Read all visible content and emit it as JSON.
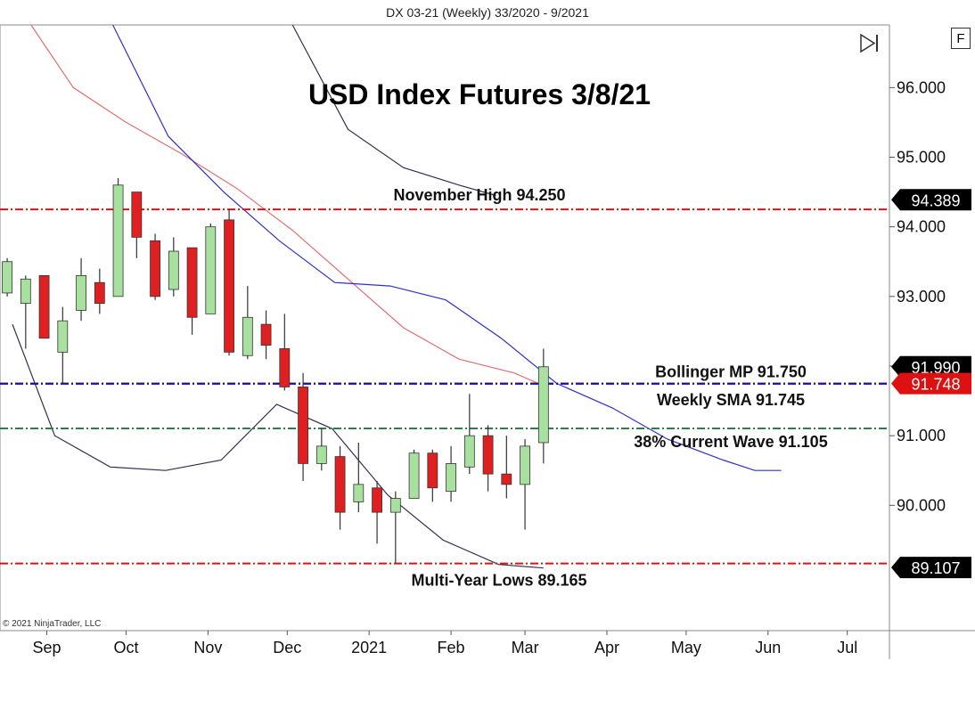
{
  "header": {
    "title": "DX 03-21 (Weekly)  33/2020 - 9/2021"
  },
  "buttons": {
    "f_label": "F"
  },
  "footer": {
    "copyright": "© 2021 NinjaTrader, LLC"
  },
  "chart_data": {
    "type": "candlestick",
    "title": "USD Index Futures 3/8/21",
    "ylim": [
      88.2,
      96.9
    ],
    "yticks": [
      90,
      91,
      92,
      93,
      94,
      95,
      96
    ],
    "ytick_labels": [
      "90.000",
      "91.000",
      "92.000",
      "93.000",
      "94.000",
      "95.000",
      "96.000"
    ],
    "xaxis_labels": [
      "Sep",
      "Oct",
      "Nov",
      "Dec",
      "2021",
      "Feb",
      "Mar",
      "Apr",
      "May",
      "Jun",
      "Jul"
    ],
    "grid": false,
    "colors": {
      "up": "#a8e0a0",
      "down": "#e02020",
      "wick": "#333333",
      "sma": "#3030d0",
      "bollinger_mid": "#e07070",
      "bollinger_band": "#303050"
    },
    "candles": [
      {
        "week": "2020-08-17",
        "o": 93.05,
        "h": 93.55,
        "l": 93.0,
        "c": 93.5
      },
      {
        "week": "2020-08-24",
        "o": 92.9,
        "h": 93.3,
        "l": 92.25,
        "c": 93.25
      },
      {
        "week": "2020-08-31",
        "o": 93.3,
        "h": 93.3,
        "l": 92.4,
        "c": 92.4
      },
      {
        "week": "2020-09-07",
        "o": 92.2,
        "h": 92.85,
        "l": 91.75,
        "c": 92.65
      },
      {
        "week": "2020-09-14",
        "o": 92.8,
        "h": 93.55,
        "l": 92.65,
        "c": 93.3
      },
      {
        "week": "2020-09-21",
        "o": 93.2,
        "h": 93.4,
        "l": 92.75,
        "c": 92.9
      },
      {
        "week": "2020-09-28",
        "o": 93.0,
        "h": 94.7,
        "l": 93.0,
        "c": 94.6
      },
      {
        "week": "2020-10-05",
        "o": 94.5,
        "h": 94.5,
        "l": 93.55,
        "c": 93.85
      },
      {
        "week": "2020-10-12",
        "o": 93.8,
        "h": 93.9,
        "l": 92.95,
        "c": 93.0
      },
      {
        "week": "2020-10-19",
        "o": 93.1,
        "h": 93.85,
        "l": 93.0,
        "c": 93.65
      },
      {
        "week": "2020-10-26",
        "o": 93.7,
        "h": 93.7,
        "l": 92.45,
        "c": 92.7
      },
      {
        "week": "2020-11-02",
        "o": 92.75,
        "h": 94.05,
        "l": 92.75,
        "c": 94.0
      },
      {
        "week": "2020-11-09",
        "o": 94.1,
        "h": 94.25,
        "l": 92.15,
        "c": 92.2
      },
      {
        "week": "2020-11-16",
        "o": 92.15,
        "h": 93.15,
        "l": 92.1,
        "c": 92.7
      },
      {
        "week": "2020-11-23",
        "o": 92.6,
        "h": 92.8,
        "l": 92.1,
        "c": 92.3
      },
      {
        "week": "2020-11-30",
        "o": 92.25,
        "h": 92.75,
        "l": 91.65,
        "c": 91.7
      },
      {
        "week": "2020-12-07",
        "o": 91.7,
        "h": 91.9,
        "l": 90.35,
        "c": 90.6
      },
      {
        "week": "2020-12-14",
        "o": 90.6,
        "h": 91.1,
        "l": 90.5,
        "c": 90.85
      },
      {
        "week": "2020-12-21",
        "o": 90.7,
        "h": 90.85,
        "l": 89.65,
        "c": 89.9
      },
      {
        "week": "2020-12-28",
        "o": 90.05,
        "h": 90.9,
        "l": 89.9,
        "c": 90.3
      },
      {
        "week": "2021-01-04",
        "o": 90.25,
        "h": 90.35,
        "l": 89.45,
        "c": 89.9
      },
      {
        "week": "2021-01-11",
        "o": 89.9,
        "h": 90.2,
        "l": 89.165,
        "c": 90.1
      },
      {
        "week": "2021-01-18",
        "o": 90.1,
        "h": 90.8,
        "l": 90.1,
        "c": 90.75
      },
      {
        "week": "2021-01-25",
        "o": 90.75,
        "h": 90.8,
        "l": 90.05,
        "c": 90.25
      },
      {
        "week": "2021-02-01",
        "o": 90.2,
        "h": 90.85,
        "l": 90.05,
        "c": 90.6
      },
      {
        "week": "2021-02-08",
        "o": 90.55,
        "h": 91.6,
        "l": 90.45,
        "c": 91.0
      },
      {
        "week": "2021-02-15",
        "o": 91.0,
        "h": 91.15,
        "l": 90.2,
        "c": 90.45
      },
      {
        "week": "2021-02-22",
        "o": 90.45,
        "h": 91.0,
        "l": 90.1,
        "c": 90.3
      },
      {
        "week": "2021-03-01",
        "o": 90.3,
        "h": 90.95,
        "l": 89.65,
        "c": 90.85
      },
      {
        "week": "2021-03-08",
        "o": 90.9,
        "h": 92.25,
        "l": 90.6,
        "c": 91.99
      }
    ],
    "sma": [
      [
        "2020-09-26",
        96.9
      ],
      [
        "2020-10-17",
        95.3
      ],
      [
        "2020-11-07",
        94.5
      ],
      [
        "2020-11-28",
        93.8
      ],
      [
        "2020-12-19",
        93.2
      ],
      [
        "2021-01-09",
        93.15
      ],
      [
        "2021-01-30",
        92.95
      ],
      [
        "2021-02-20",
        92.4
      ],
      [
        "2021-03-13",
        91.75
      ],
      [
        "2021-04-03",
        91.4
      ],
      [
        "2021-04-24",
        90.95
      ],
      [
        "2021-05-15",
        90.65
      ],
      [
        "2021-05-27",
        90.5
      ],
      [
        "2021-06-06",
        90.5
      ]
    ],
    "bollinger_mid": [
      [
        "2020-08-26",
        96.9
      ],
      [
        "2020-09-11",
        96.0
      ],
      [
        "2020-10-01",
        95.5
      ],
      [
        "2020-10-22",
        95.05
      ],
      [
        "2020-11-12",
        94.55
      ],
      [
        "2020-12-03",
        93.95
      ],
      [
        "2020-12-24",
        93.25
      ],
      [
        "2021-01-14",
        92.55
      ],
      [
        "2021-02-04",
        92.1
      ],
      [
        "2021-02-25",
        91.9
      ],
      [
        "2021-03-06",
        91.75
      ]
    ],
    "bollinger_upper": [
      [
        "2020-12-03",
        96.9
      ],
      [
        "2020-12-24",
        95.4
      ],
      [
        "2021-01-14",
        94.85
      ],
      [
        "2021-02-04",
        94.6
      ],
      [
        "2021-02-18",
        94.45
      ]
    ],
    "bollinger_lower": [
      [
        "2020-08-19",
        92.6
      ],
      [
        "2020-09-04",
        91.0
      ],
      [
        "2020-09-25",
        90.55
      ],
      [
        "2020-10-16",
        90.5
      ],
      [
        "2020-11-06",
        90.65
      ],
      [
        "2020-11-27",
        91.45
      ],
      [
        "2020-12-18",
        91.1
      ],
      [
        "2021-01-08",
        90.15
      ],
      [
        "2021-01-29",
        89.5
      ],
      [
        "2021-02-19",
        89.15
      ],
      [
        "2021-03-08",
        89.1
      ]
    ],
    "horizontal_lines": [
      {
        "y": 94.25,
        "label": "November High 94.250",
        "color": "#dd1111"
      },
      {
        "y": 91.75,
        "label": "Bollinger MP 91.750",
        "color": "#dd1111"
      },
      {
        "y": 91.745,
        "label": "Weekly SMA 91.745",
        "color": "#1111aa"
      },
      {
        "y": 91.105,
        "label": "38% Current Wave 91.105",
        "color": "#2e7d4a"
      },
      {
        "y": 89.165,
        "label": "Multi-Year Lows 89.165",
        "color": "#dd1111"
      }
    ],
    "price_markers": [
      {
        "y": 94.389,
        "label": "94.389",
        "bg": "#000000",
        "fg": "#ffffff"
      },
      {
        "y": 91.99,
        "label": "91.990",
        "bg": "#000000",
        "fg": "#ffffff"
      },
      {
        "y": 91.748,
        "label": "91.748",
        "bg": "#dd1111",
        "fg": "#ffffff"
      },
      {
        "y": 89.107,
        "label": "89.107",
        "bg": "#000000",
        "fg": "#ffffff"
      }
    ]
  }
}
